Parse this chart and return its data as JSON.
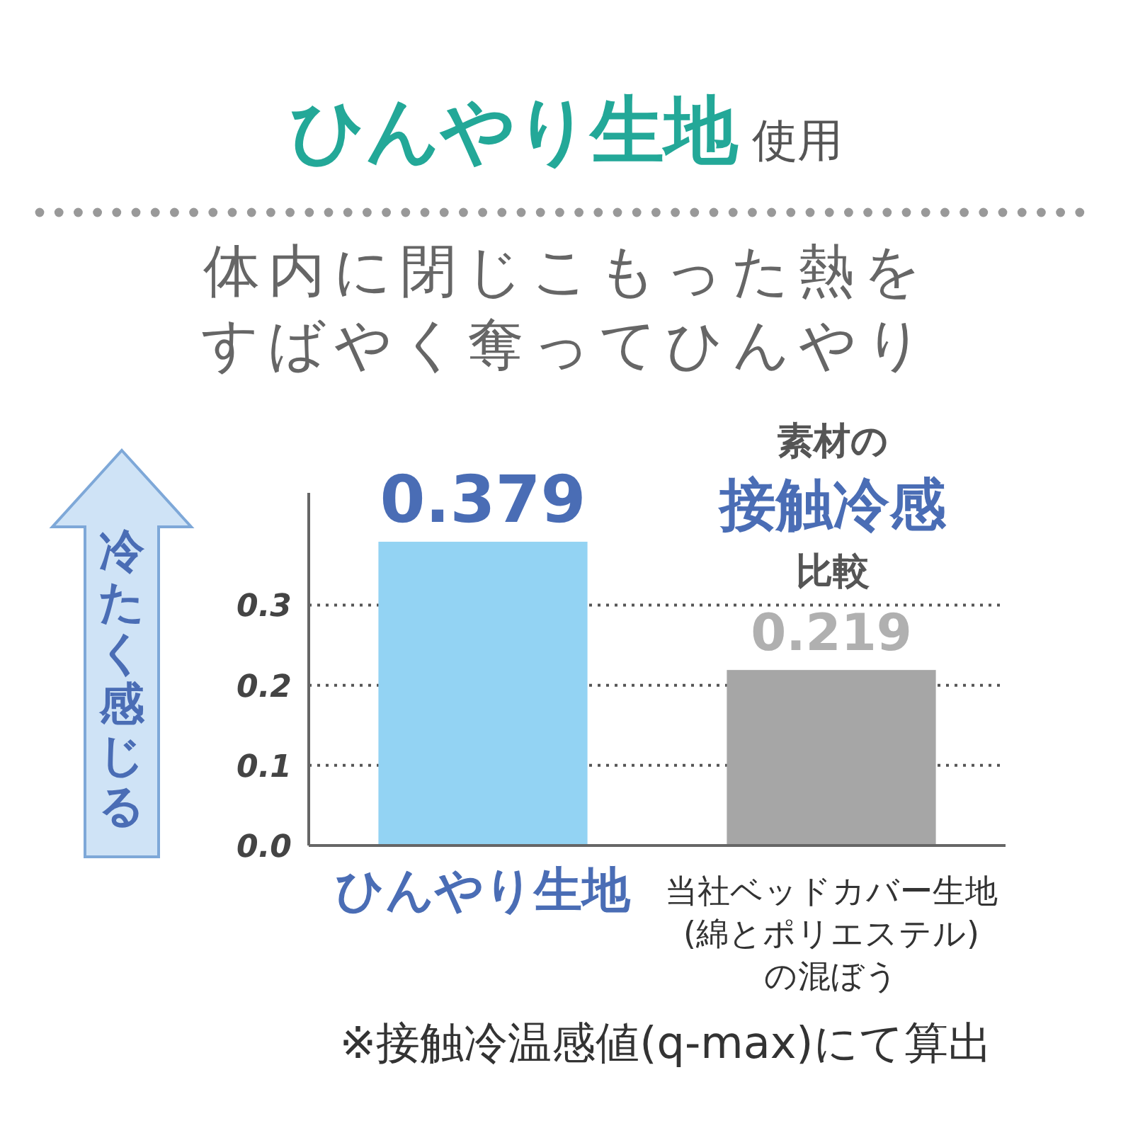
{
  "chart_data": {
    "type": "bar",
    "title": "ひんやり生地 使用",
    "subtitle": "体内に閉じこもった熱をすばやく奪ってひんやり",
    "ylabel": "冷たく感じる",
    "categories": [
      "ひんやり生地",
      "当社ベッドカバー生地\n(綿とポリエステル)\nの混ぼう"
    ],
    "values": [
      0.379,
      0.219
    ],
    "colors": [
      "#93d3f3",
      "#a6a6a6"
    ],
    "ylim": [
      0,
      0.44
    ],
    "yticks": [
      {
        "value": 0,
        "label": "0.0"
      },
      0.1,
      0.2,
      0.3
    ],
    "grid": "y",
    "data_labels": true,
    "annotations": [
      "素材の",
      "接触冷感",
      "比較",
      "※接触冷温感値(q-max)にて算出"
    ]
  }
}
